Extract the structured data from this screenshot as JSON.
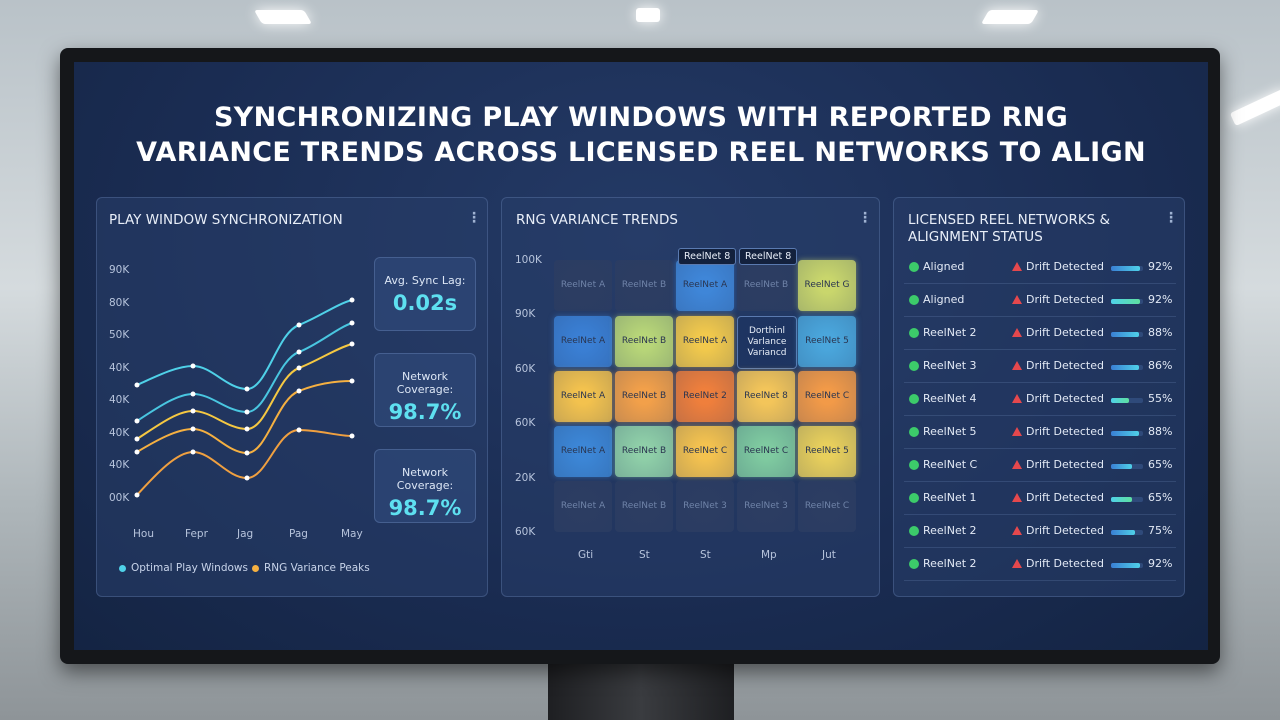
{
  "title": [
    "SYNCHRONIZING PLAY WINDOWS WITH REPORTED RNG",
    "VARIANCE TRENDS ACROSS LICENSED REEL NETWORKS TO ALIGN"
  ],
  "sync_panel": {
    "title": "PLAY WINDOW SYNCHRONIZATION",
    "y_labels": [
      "90K",
      "80K",
      "50K",
      "40K",
      "40K",
      "40K",
      "40K",
      "00K"
    ],
    "x_labels": [
      "Hou",
      "Fepr",
      "Jag",
      "Pag",
      "May"
    ],
    "stats": [
      {
        "label": "Avg. Sync Lag:",
        "value": "0.02s"
      },
      {
        "label": "Network Coverage:",
        "value": "98.7%"
      },
      {
        "label": "Network Coverage:",
        "value": "98.7%"
      }
    ],
    "legend": [
      {
        "name": "Optimal Play Windows",
        "color": "#4fd1e8"
      },
      {
        "name": "RNG Variance Peaks",
        "color": "#f5b041"
      }
    ]
  },
  "variance_panel": {
    "title": "RNG VARIANCE TRENDS",
    "y_labels": [
      "100K",
      "90K",
      "60K",
      "60K",
      "20K",
      "60K"
    ],
    "x_labels": [
      "Gti",
      "St",
      "St",
      "Mp",
      "Jut"
    ],
    "tooltips": [
      "ReelNet 8",
      "ReelNet 8"
    ],
    "cells": [
      [
        {
          "label": "ReelNet A",
          "color": "#2c3d62"
        },
        {
          "label": "ReelNet B",
          "color": "#2c3d62"
        },
        {
          "label": "ReelNet A",
          "color": "#3f86d8"
        },
        {
          "label": "ReelNet B",
          "color": "#2c3d62"
        },
        {
          "label": "ReelNet G",
          "color": "#c9d66c"
        }
      ],
      [
        {
          "label": "ReelNet A",
          "color": "#3a7fd4"
        },
        {
          "label": "ReelNet B",
          "color": "#b8d678"
        },
        {
          "label": "ReelNet A",
          "color": "#f2c94c"
        },
        {
          "label": "Dorthinl Varlance Variancd",
          "color": "#1d3461"
        },
        {
          "label": "ReelNet 5",
          "color": "#4aa6dc"
        }
      ],
      [
        {
          "label": "ReelNet A",
          "color": "#f3c24e"
        },
        {
          "label": "ReelNet B",
          "color": "#f2a04a"
        },
        {
          "label": "ReelNet 2",
          "color": "#ef7f3c"
        },
        {
          "label": "ReelNet 8",
          "color": "#f3c55a"
        },
        {
          "label": "ReelNet C",
          "color": "#f29a48"
        }
      ],
      [
        {
          "label": "ReelNet A",
          "color": "#3c86d6"
        },
        {
          "label": "ReelNet B",
          "color": "#8fcfa8"
        },
        {
          "label": "ReelNet C",
          "color": "#f4c24f"
        },
        {
          "label": "ReelNet C",
          "color": "#7fcaa0"
        },
        {
          "label": "ReelNet 5",
          "color": "#e8cf5c"
        }
      ],
      [
        {
          "label": "ReelNet A",
          "color": "#2c3d62"
        },
        {
          "label": "ReelNet B",
          "color": "#2c3d62"
        },
        {
          "label": "ReelNet 3",
          "color": "#2c3d62"
        },
        {
          "label": "ReelNet 3",
          "color": "#2c3d62"
        },
        {
          "label": "ReelNet C",
          "color": "#2c3d62"
        }
      ]
    ]
  },
  "networks_panel": {
    "title": [
      "LICENSED REEL NETWORKS &",
      "ALIGNMENT STATUS"
    ],
    "rows": [
      {
        "name": "Aligned",
        "status": "Drift Detected",
        "pct": {
          "value": 92,
          "label": "92%"
        }
      },
      {
        "name": "Aligned",
        "status": "Drift Detected",
        "pct": {
          "value": 92,
          "label": "92%"
        }
      },
      {
        "name": "ReelNet 2",
        "status": "Drift Detected",
        "pct": {
          "value": 88,
          "label": "88%"
        }
      },
      {
        "name": "ReelNet 3",
        "status": "Drift Detected",
        "pct": {
          "value": 86,
          "label": "86%"
        }
      },
      {
        "name": "ReelNet 4",
        "status": "Drift Detected",
        "pct": {
          "value": 55,
          "label": "55%"
        }
      },
      {
        "name": "ReelNet 5",
        "status": "Drift Detected",
        "pct": {
          "value": 88,
          "label": "88%"
        }
      },
      {
        "name": "ReelNet C",
        "status": "Drift Detected",
        "pct": {
          "value": 65,
          "label": "65%"
        }
      },
      {
        "name": "ReelNet 1",
        "status": "Drift Detected",
        "pct": {
          "value": 65,
          "label": "65%"
        }
      },
      {
        "name": "ReelNet 2",
        "status": "Drift Detected",
        "pct": {
          "value": 75,
          "label": "75%"
        }
      },
      {
        "name": "ReelNet 2",
        "status": "Drift Detected",
        "pct": {
          "value": 92,
          "label": "92%"
        }
      }
    ]
  }
}
